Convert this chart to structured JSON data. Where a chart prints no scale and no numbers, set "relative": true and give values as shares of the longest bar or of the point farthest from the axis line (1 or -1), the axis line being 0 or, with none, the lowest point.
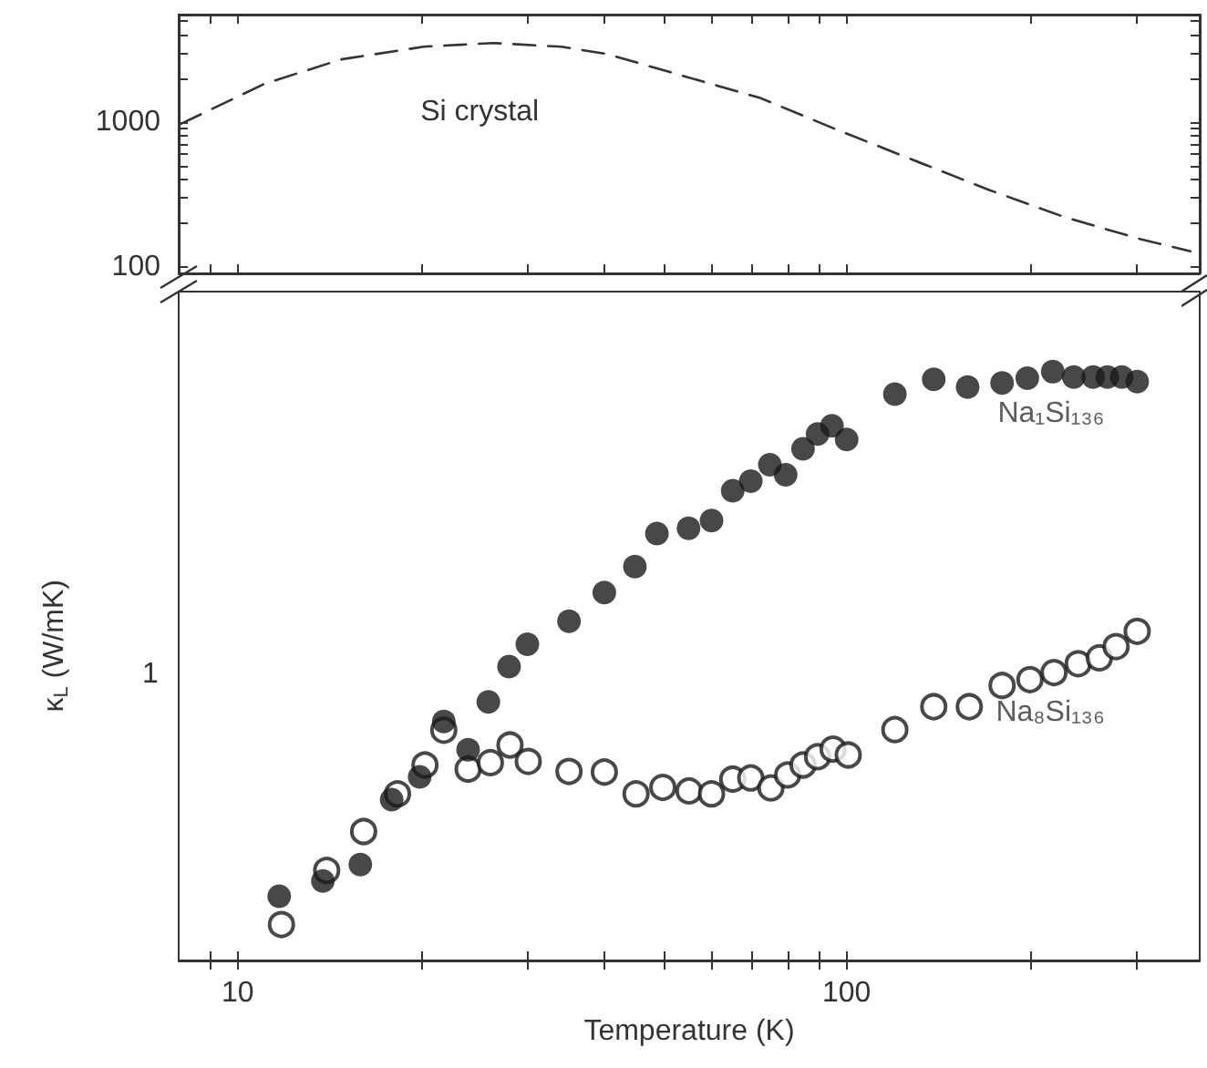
{
  "chart_data": [
    {
      "type": "line",
      "log": "xy",
      "tick_labels": "y",
      "grid": false,
      "legend": false,
      "xlim": [
        8,
        380
      ],
      "xticks": [
        {
          "value": 9,
          "label": null
        },
        {
          "value": 10,
          "label": null
        },
        {
          "value": 20,
          "label": null
        },
        {
          "value": 30,
          "label": null
        },
        {
          "value": 40,
          "label": null
        },
        {
          "value": 50,
          "label": null
        },
        {
          "value": 60,
          "label": null
        },
        {
          "value": 70,
          "label": null
        },
        {
          "value": 80,
          "label": null
        },
        {
          "value": 90,
          "label": null
        },
        {
          "value": 100,
          "label": null
        },
        {
          "value": 200,
          "label": null
        },
        {
          "value": 300,
          "label": null
        }
      ],
      "ylim": [
        90,
        5500
      ],
      "yticks": [
        100,
        {
          "value": 200,
          "label": null
        },
        {
          "value": 300,
          "label": null
        },
        {
          "value": 400,
          "label": null
        },
        {
          "value": 500,
          "label": null
        },
        {
          "value": 600,
          "label": null
        },
        {
          "value": 700,
          "label": null
        },
        {
          "value": 800,
          "label": null
        },
        {
          "value": 900,
          "label": null
        },
        1000,
        {
          "value": 2000,
          "label": null
        },
        {
          "value": 3000,
          "label": null
        },
        {
          "value": 4000,
          "label": null
        },
        {
          "value": 5000,
          "label": null
        }
      ],
      "series": [
        {
          "name": "Si crystal",
          "color": "#333333",
          "line_style": "dashed",
          "marker": "none",
          "x": [
            8.07,
            11.1,
            14.8,
            20.2,
            26.3,
            34.0,
            40.4,
            54.0,
            72.2,
            95.9,
            128,
            171,
            228,
            304,
            367
          ],
          "values": [
            970,
            1840,
            2700,
            3300,
            3500,
            3300,
            2940,
            2070,
            1460,
            890,
            550,
            340,
            220,
            155,
            128
          ]
        }
      ]
    },
    {
      "type": "scatter",
      "log": "x",
      "relative": true,
      "grid": false,
      "legend": false,
      "xlabel": "Temperature (K)",
      "ylabel": "κ$_{L}$ (W/mK)",
      "annotations": [
        "1"
      ],
      "xlim": [
        8,
        380
      ],
      "xticks": [
        {
          "value": 9,
          "label": null
        },
        10,
        {
          "value": 20,
          "label": null
        },
        {
          "value": 30,
          "label": null
        },
        {
          "value": 40,
          "label": null
        },
        {
          "value": 50,
          "label": null
        },
        {
          "value": 60,
          "label": null
        },
        {
          "value": 70,
          "label": null
        },
        {
          "value": 80,
          "label": null
        },
        {
          "value": 90,
          "label": null
        },
        100,
        {
          "value": 200,
          "label": null
        },
        {
          "value": 300,
          "label": null
        }
      ],
      "series": [
        {
          "name": "Na₁Si₁₃₆",
          "color": "#1a1a1a",
          "marker": "circle",
          "x": [
            11.7,
            13.8,
            15.9,
            17.9,
            19.9,
            21.8,
            23.9,
            25.8,
            27.9,
            29.9,
            35.0,
            40.0,
            44.9,
            48.8,
            55.0,
            60.0,
            65.0,
            69.6,
            74.8,
            79.4,
            84.8,
            89.6,
            94.6,
            100,
            120,
            139,
            158,
            180,
            198,
            218,
            236,
            254,
            268,
            283,
            300
          ],
          "values": [
            0.109,
            0.135,
            0.163,
            0.273,
            0.312,
            0.406,
            0.358,
            0.439,
            0.499,
            0.537,
            0.576,
            0.625,
            0.669,
            0.725,
            0.734,
            0.747,
            0.798,
            0.814,
            0.842,
            0.825,
            0.869,
            0.894,
            0.908,
            0.885,
            0.962,
            0.987,
            0.974,
            0.981,
            0.989,
            1,
            0.991,
            0.991,
            0.991,
            0.991,
            0.983
          ]
        },
        {
          "name": "Na₈Si₁₃₆",
          "color": "#1a1a1a",
          "marker": "emptyCircle",
          "x": [
            11.8,
            14.0,
            16.1,
            18.3,
            20.3,
            21.8,
            23.9,
            26.0,
            28.0,
            30.0,
            35.0,
            40.0,
            45.1,
            49.9,
            55.1,
            60.0,
            65.0,
            69.6,
            75.1,
            80.0,
            84.8,
            89.6,
            95.0,
            100.6,
            120,
            139,
            159,
            180,
            200,
            219,
            240,
            260,
            277,
            300
          ],
          "values": [
            0.061,
            0.153,
            0.219,
            0.283,
            0.332,
            0.391,
            0.325,
            0.336,
            0.366,
            0.338,
            0.321,
            0.32,
            0.283,
            0.294,
            0.288,
            0.283,
            0.308,
            0.31,
            0.293,
            0.315,
            0.332,
            0.346,
            0.359,
            0.349,
            0.392,
            0.431,
            0.431,
            0.467,
            0.477,
            0.489,
            0.504,
            0.514,
            0.533,
            0.559
          ]
        }
      ]
    }
  ]
}
